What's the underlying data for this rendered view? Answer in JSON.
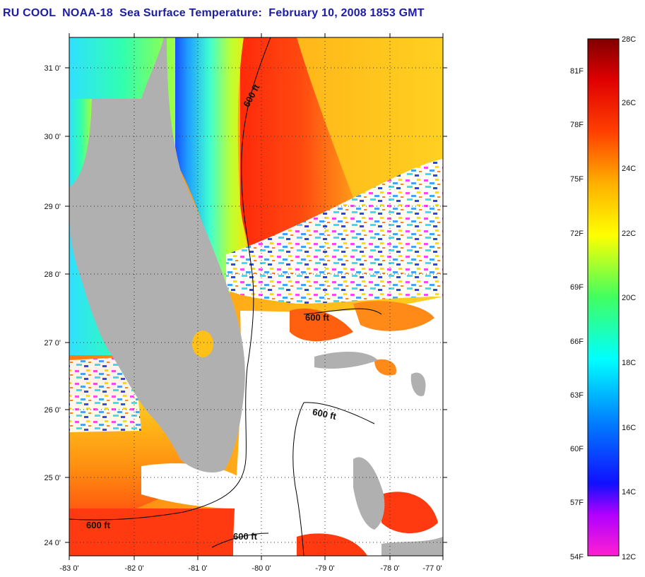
{
  "title": "RU COOL  NOAA-18  Sea Surface Temperature:  February 10, 2008 1853 GMT",
  "map": {
    "lat_ticks": [
      "31 0'",
      "30 0'",
      "29 0'",
      "28 0'",
      "27 0'",
      "26 0'",
      "25 0'",
      "24 0'"
    ],
    "lon_ticks": [
      "-83 0'",
      "-82 0'",
      "-81 0'",
      "-80 0'",
      "-79 0'",
      "-78 0'",
      "-77 0'"
    ],
    "contour_labels": [
      "600 ft",
      "600 ft",
      "600 ft",
      "600 ft",
      "600 ft"
    ]
  },
  "colorbar": {
    "celsius": [
      "28C",
      "26C",
      "24C",
      "22C",
      "20C",
      "18C",
      "16C",
      "14C",
      "12C"
    ],
    "fahrenheit": [
      "81F",
      "78F",
      "75F",
      "72F",
      "69F",
      "66F",
      "63F",
      "60F",
      "57F",
      "54F"
    ]
  },
  "colors": {
    "land": "#b0b0b0",
    "cloud": "#ffffff",
    "title": "#1c1ca8",
    "warm": "#ff3a10",
    "gulfstream": "#ff2a0a",
    "shelf_cool": "#2ad8ff"
  }
}
